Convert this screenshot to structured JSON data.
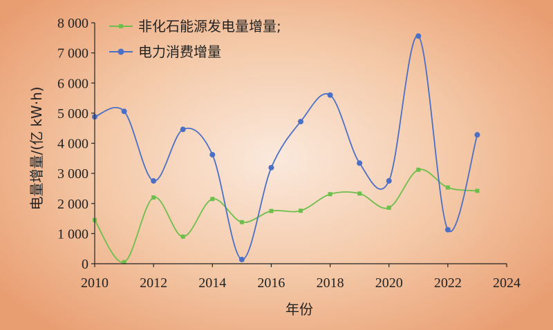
{
  "chart_data": {
    "type": "line",
    "xlabel": "年份",
    "ylabel": "电量增量/(亿 kW·h)",
    "xlim": [
      2010,
      2024
    ],
    "ylim": [
      0,
      8000
    ],
    "xticks": [
      2010,
      2012,
      2014,
      2016,
      2018,
      2020,
      2022,
      2024
    ],
    "xtick_labels": [
      "2010",
      "2012",
      "2014",
      "2016",
      "2018",
      "2020",
      "2022",
      "2024"
    ],
    "yticks": [
      0,
      1000,
      2000,
      3000,
      4000,
      5000,
      6000,
      7000,
      8000
    ],
    "ytick_labels": [
      "0",
      "1 000",
      "2 000",
      "3 000",
      "4 000",
      "5 000",
      "6 000",
      "7 000",
      "8 000"
    ],
    "grid": false,
    "legend_position": "top-left",
    "smooth": true,
    "series": [
      {
        "name": "非化石能源发电量增量;",
        "color": "#6dbf4b",
        "marker": "square",
        "x": [
          2010,
          2011,
          2012,
          2013,
          2014,
          2015,
          2016,
          2017,
          2018,
          2019,
          2020,
          2021,
          2022,
          2023
        ],
        "values": [
          1450,
          50,
          2200,
          900,
          2150,
          1380,
          1750,
          1760,
          2310,
          2330,
          1860,
          3120,
          2530,
          2420
        ]
      },
      {
        "name": "电力消费增量",
        "color": "#4a6fc4",
        "marker": "circle",
        "x": [
          2010,
          2011,
          2012,
          2013,
          2014,
          2015,
          2016,
          2017,
          2018,
          2019,
          2020,
          2021,
          2022,
          2023
        ],
        "values": [
          4880,
          5060,
          2750,
          4460,
          3620,
          140,
          3190,
          4720,
          5600,
          3340,
          2750,
          7560,
          1130,
          4280
        ]
      }
    ]
  }
}
